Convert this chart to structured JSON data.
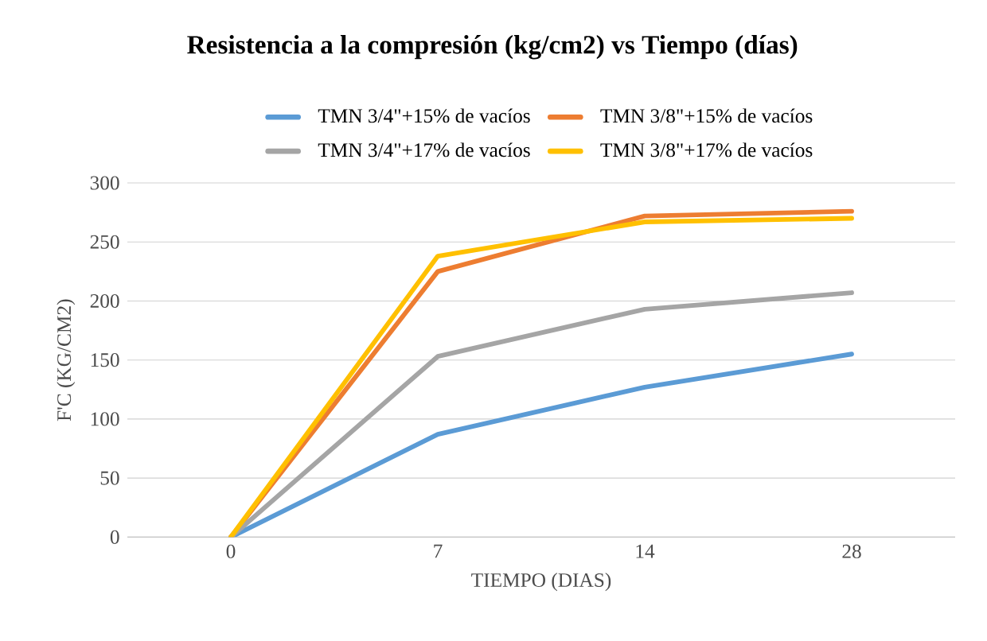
{
  "chart_data": {
    "type": "line",
    "title": "Resistencia a la compresión (kg/cm2) vs Tiempo (días)",
    "xlabel": "TIEMPO (DIAS)",
    "ylabel": "F'C (KG/CM2)",
    "categories": [
      "0",
      "7",
      "14",
      "28"
    ],
    "series": [
      {
        "name": "TMN 3/4\"+15% de vacíos",
        "color": "#5b9bd5",
        "values": [
          0,
          87,
          127,
          155
        ]
      },
      {
        "name": "TMN 3/8\"+15% de vacíos",
        "color": "#ed7d31",
        "values": [
          0,
          225,
          272,
          276
        ]
      },
      {
        "name": "TMN 3/4\"+17% de vacíos",
        "color": "#a5a5a5",
        "values": [
          0,
          153,
          193,
          207
        ]
      },
      {
        "name": "TMN 3/8\"+17% de vacíos",
        "color": "#ffc000",
        "values": [
          0,
          238,
          267,
          270
        ]
      }
    ],
    "ylim": [
      0,
      300
    ],
    "yticks": [
      0,
      50,
      100,
      150,
      200,
      250,
      300
    ],
    "grid": "y",
    "legend": "top"
  }
}
